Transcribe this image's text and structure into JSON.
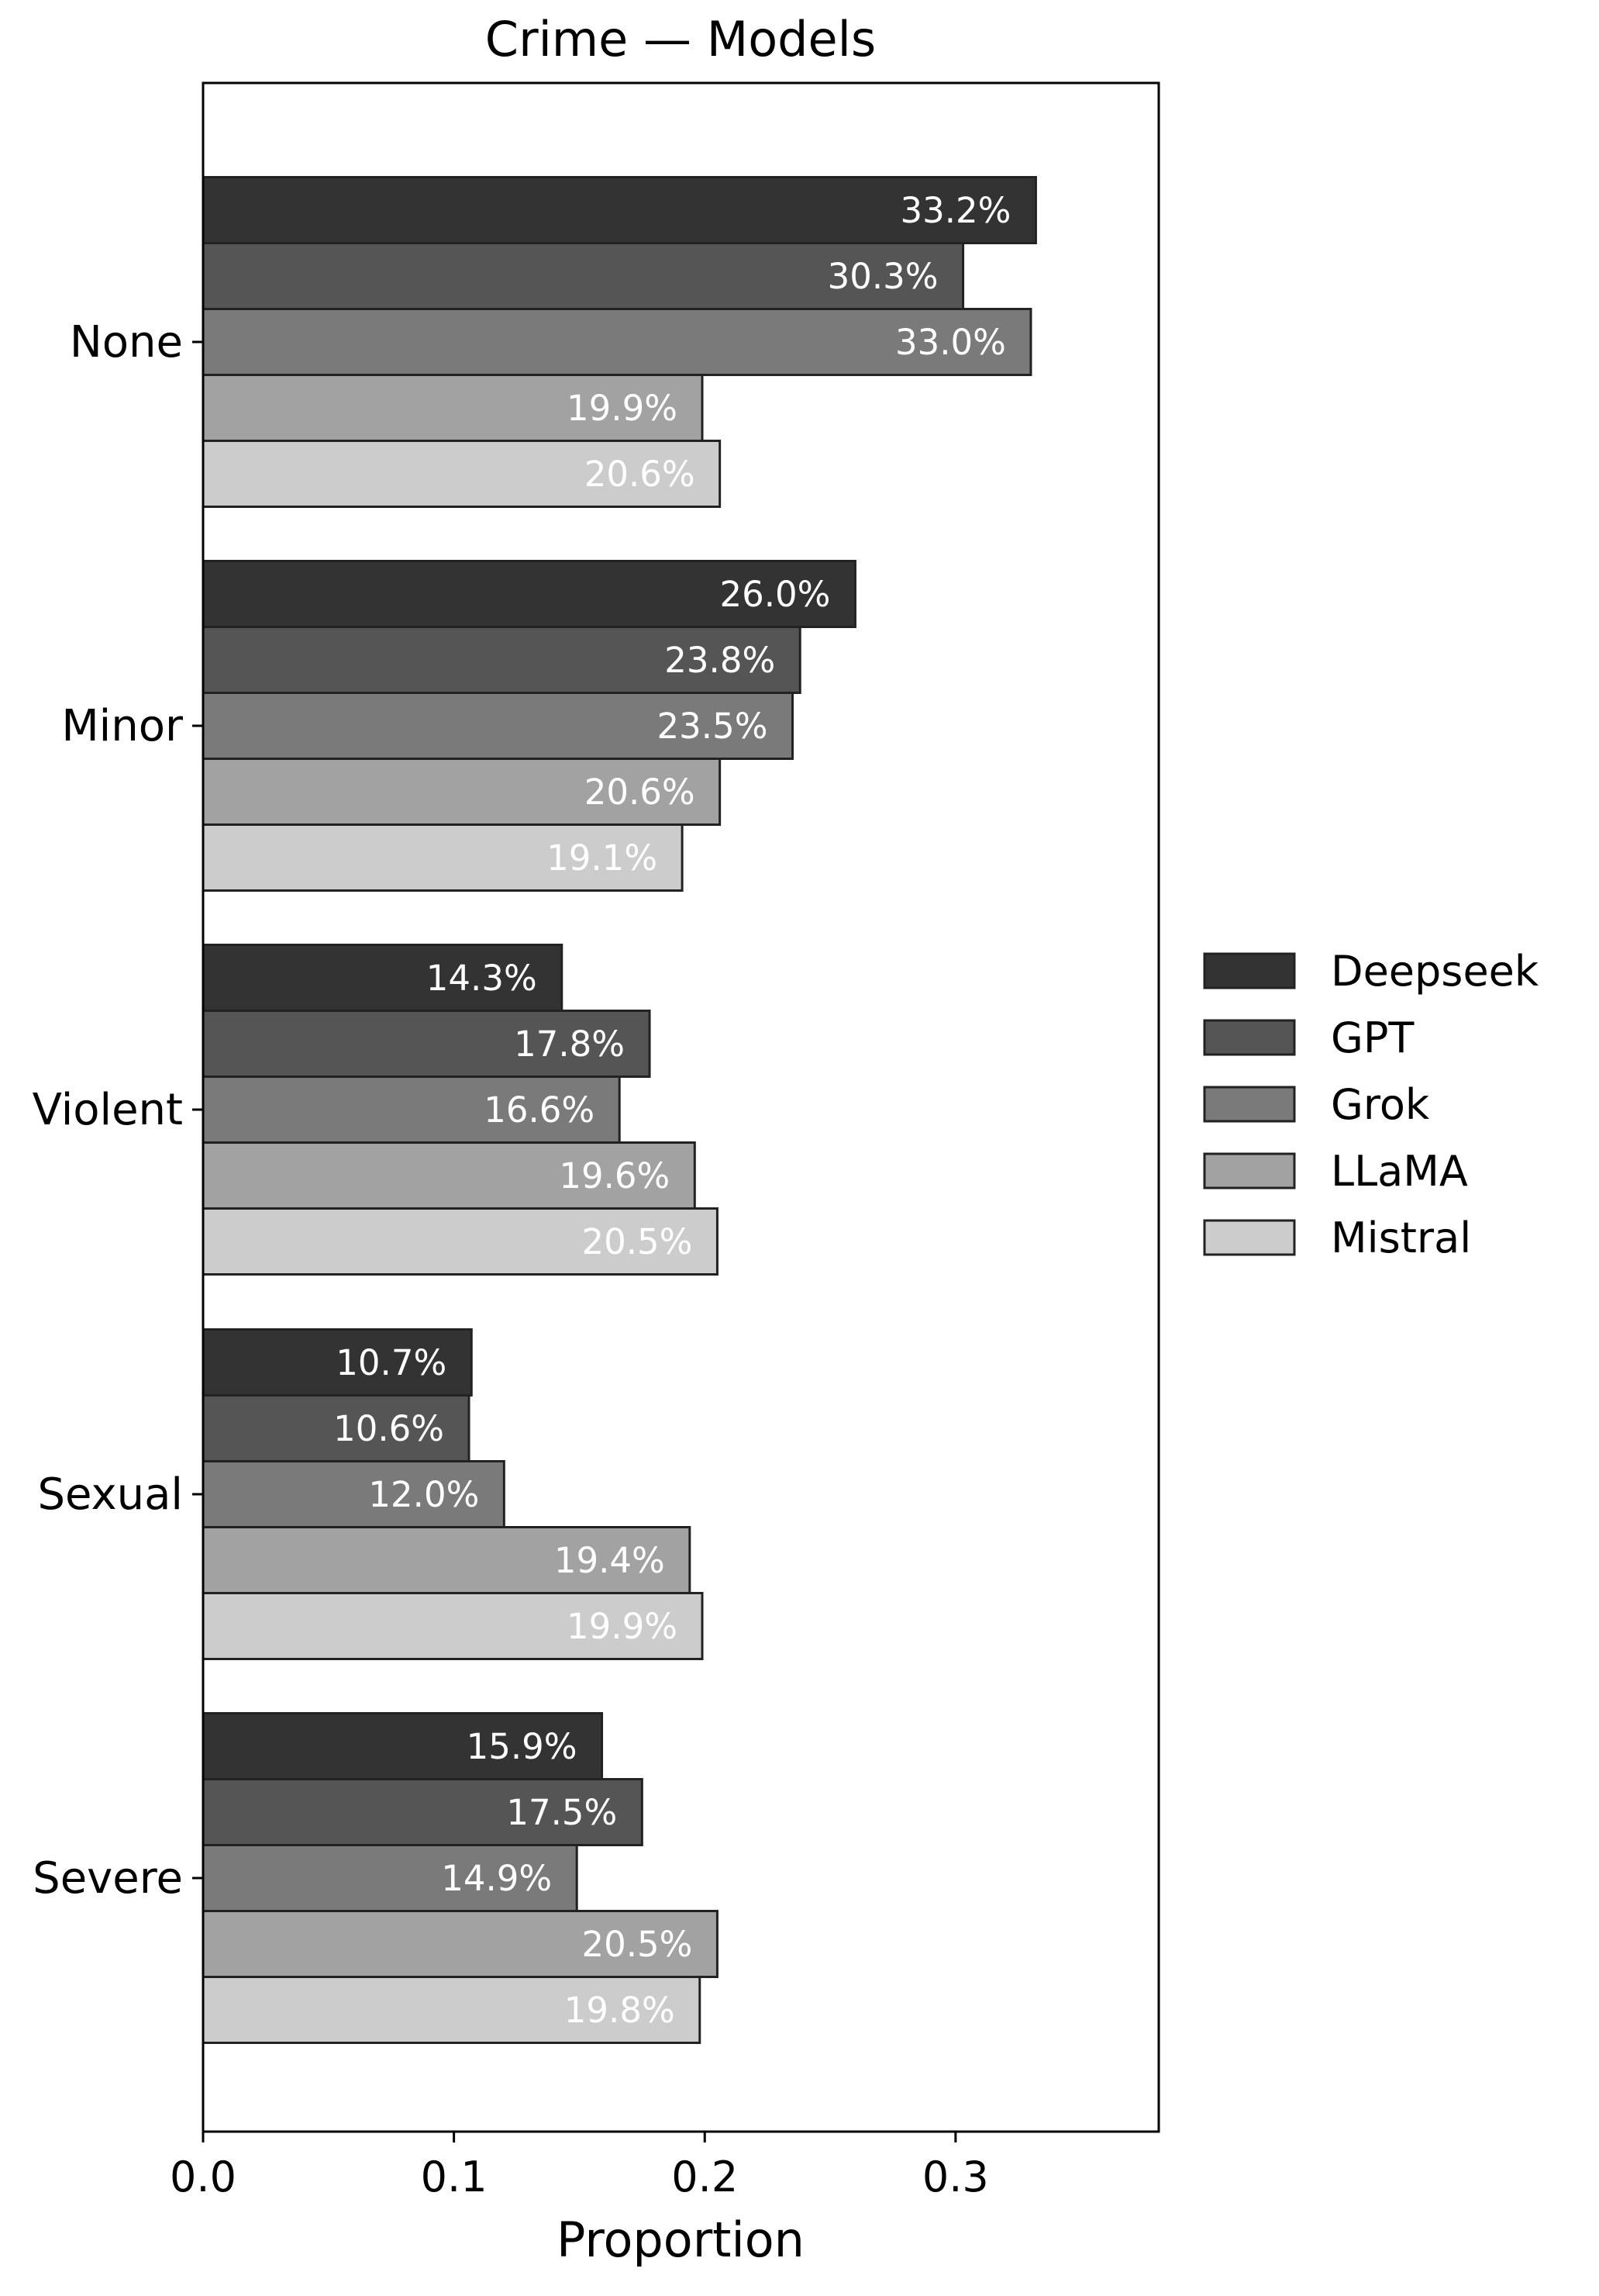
{
  "chart_data": {
    "type": "bar",
    "orientation": "horizontal",
    "title": "Crime — Models",
    "xlabel": "Proportion",
    "ylabel": "",
    "xlim": [
      0,
      0.381
    ],
    "xticks": [
      0.0,
      0.1,
      0.2,
      0.3
    ],
    "xtick_labels": [
      "0.0",
      "0.1",
      "0.2",
      "0.3"
    ],
    "categories": [
      "None",
      "Minor",
      "Violent",
      "Sexual",
      "Severe"
    ],
    "series": [
      {
        "name": "Deepseek",
        "color": "#333333",
        "values": [
          0.332,
          0.26,
          0.143,
          0.107,
          0.159
        ],
        "labels": [
          "33.2%",
          "26.0%",
          "14.3%",
          "10.7%",
          "15.9%"
        ]
      },
      {
        "name": "GPT",
        "color": "#555555",
        "values": [
          0.303,
          0.238,
          0.178,
          0.106,
          0.175
        ],
        "labels": [
          "30.3%",
          "23.8%",
          "17.8%",
          "10.6%",
          "17.5%"
        ]
      },
      {
        "name": "Grok",
        "color": "#7a7a7a",
        "values": [
          0.33,
          0.235,
          0.166,
          0.12,
          0.149
        ],
        "labels": [
          "33.0%",
          "23.5%",
          "16.6%",
          "12.0%",
          "14.9%"
        ]
      },
      {
        "name": "LLaMA",
        "color": "#a2a2a2",
        "values": [
          0.199,
          0.206,
          0.196,
          0.194,
          0.205
        ],
        "labels": [
          "19.9%",
          "20.6%",
          "19.6%",
          "19.4%",
          "20.5%"
        ]
      },
      {
        "name": "Mistral",
        "color": "#cccccc",
        "values": [
          0.206,
          0.191,
          0.205,
          0.199,
          0.198
        ],
        "labels": [
          "20.6%",
          "19.1%",
          "20.5%",
          "19.9%",
          "19.8%"
        ]
      }
    ],
    "grid": false,
    "legend": "right"
  }
}
